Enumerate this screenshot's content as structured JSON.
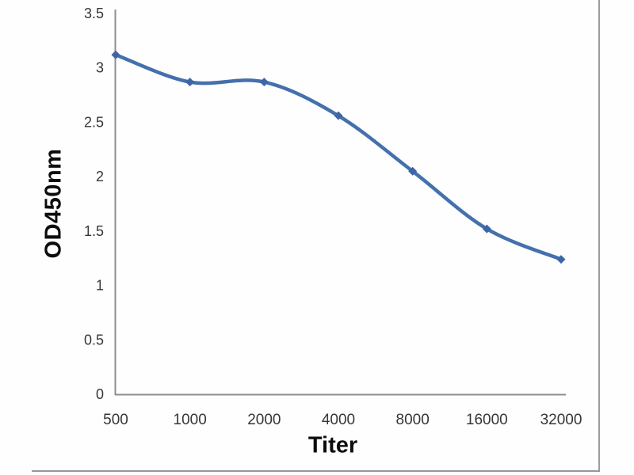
{
  "figure": {
    "xlabel": "Titer",
    "ylabel": "OD450nm"
  },
  "chart_data": {
    "type": "line",
    "title": "",
    "xlabel": "Titer",
    "ylabel": "OD450nm",
    "categories": [
      "500",
      "1000",
      "2000",
      "4000",
      "8000",
      "16000",
      "32000"
    ],
    "series": [
      {
        "name": "OD450nm",
        "values": [
          3.12,
          2.87,
          2.87,
          2.56,
          2.05,
          1.52,
          1.24
        ]
      }
    ],
    "ylim": [
      0,
      3.5
    ],
    "yticks": [
      0,
      0.5,
      1,
      1.5,
      2,
      2.5,
      3,
      3.5
    ],
    "ytick_labels": [
      "0",
      "0.5",
      "1",
      "1.5",
      "2",
      "2.5",
      "3",
      "3.5"
    ],
    "grid": false,
    "legend": "none",
    "smooth": true,
    "marker": "diamond",
    "colors": {
      "line": "#4470AD",
      "marker": "#3E66A7",
      "axis": "#8E8E8E",
      "tick_text": "#363636"
    }
  }
}
